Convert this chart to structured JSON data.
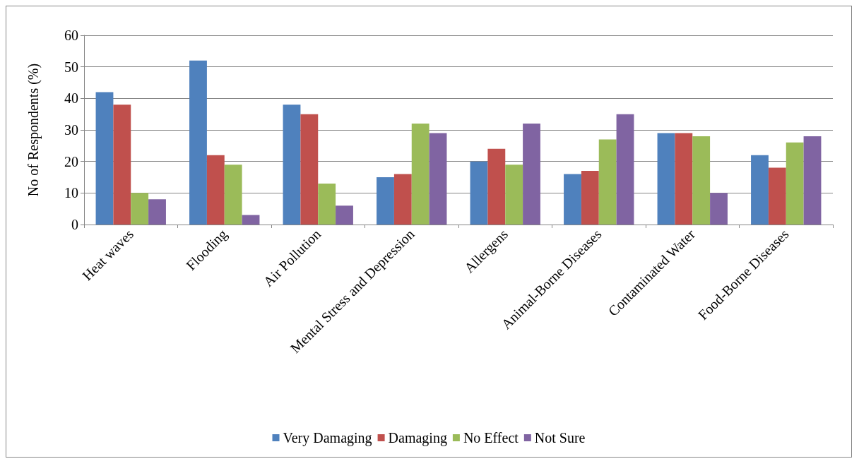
{
  "chart_data": {
    "type": "bar",
    "ylabel": "No of Respondents (%)",
    "categories": [
      "Heat waves",
      "Flooding",
      "Air Pollution",
      "Mental Stress and Depression",
      "Allergens",
      "Animal-Borne Diseases",
      "Contaminated Water",
      "Food-Borne Diseases"
    ],
    "series": [
      {
        "name": "Very Damaging",
        "color": "#4f81bd",
        "values": [
          42,
          52,
          38,
          15,
          20,
          16,
          29,
          22
        ]
      },
      {
        "name": "Damaging",
        "color": "#c0504d",
        "values": [
          38,
          22,
          35,
          16,
          24,
          17,
          29,
          18
        ]
      },
      {
        "name": "No Effect",
        "color": "#9bbb59",
        "values": [
          10,
          19,
          13,
          32,
          19,
          27,
          28,
          26
        ]
      },
      {
        "name": "Not Sure",
        "color": "#8064a2",
        "values": [
          8,
          3,
          6,
          29,
          32,
          35,
          10,
          28
        ]
      }
    ],
    "ylim": [
      0,
      60
    ],
    "yticks": [
      0,
      10,
      20,
      30,
      40,
      50,
      60
    ],
    "grid": "y",
    "legend": "bottom"
  }
}
